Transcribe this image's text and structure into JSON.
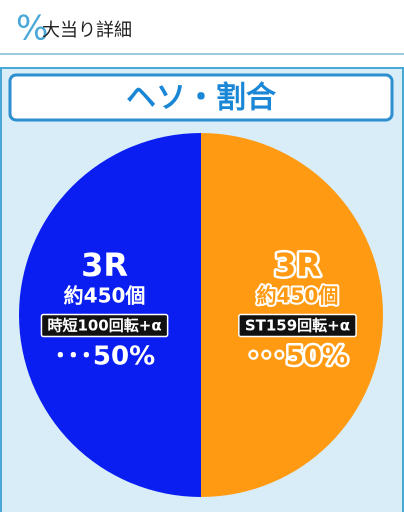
{
  "header": {
    "icon": "%",
    "title": "大当り詳細"
  },
  "chart_data": {
    "type": "pie",
    "title": "ヘソ・割合",
    "categories": [
      "ST159回転+α",
      "時短100回転+α"
    ],
    "rounds": [
      "3R",
      "3R"
    ],
    "balls": [
      "約450個",
      "約450個"
    ],
    "values": [
      50,
      50
    ],
    "value_labels": [
      "･･･50%",
      "･･･50%"
    ],
    "colors": [
      "#ff9a12",
      "#0a1ef2"
    ]
  }
}
